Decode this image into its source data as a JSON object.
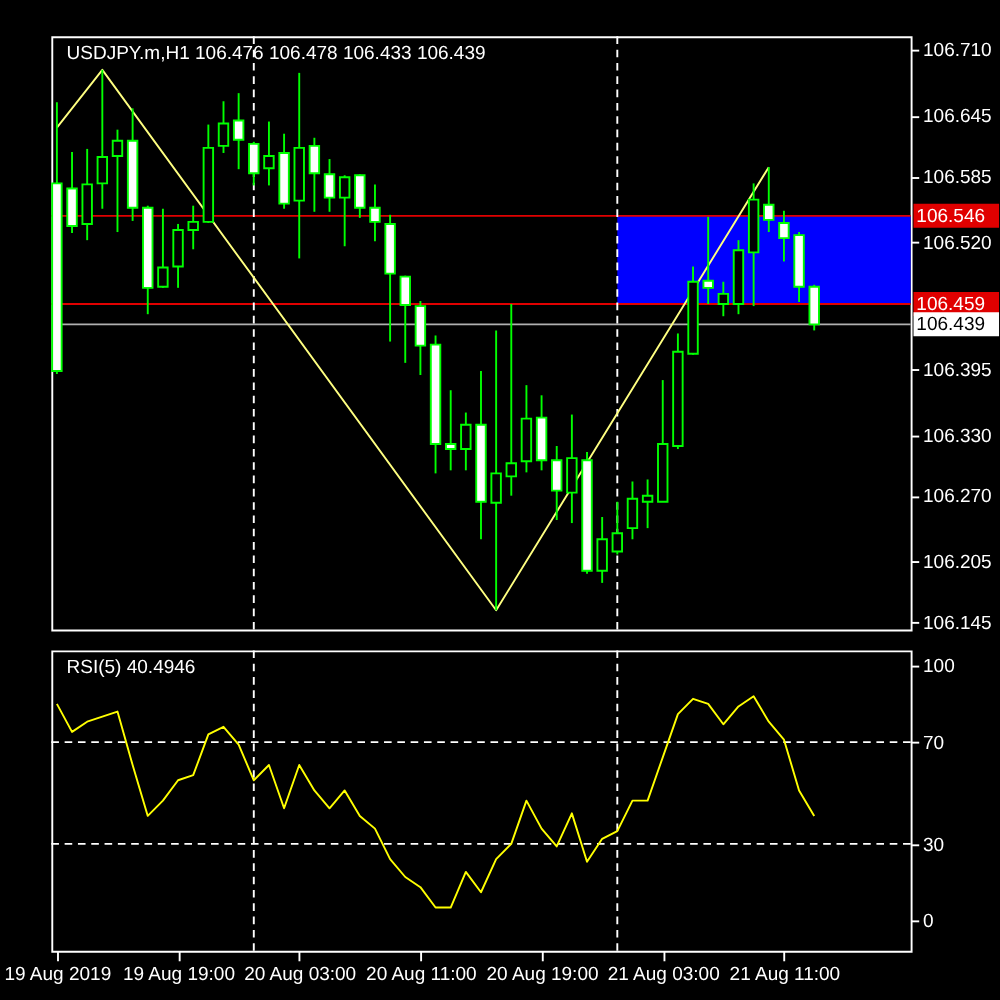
{
  "chart_data": [
    {
      "type": "candlestick",
      "title": "USDJPY.m,H1  106.476 106.478 106.433 106.439",
      "x": [
        "2019-08-19T11:00",
        "2019-08-19T12:00",
        "2019-08-19T13:00",
        "2019-08-19T14:00",
        "2019-08-19T15:00",
        "2019-08-19T16:00",
        "2019-08-19T17:00",
        "2019-08-19T18:00",
        "2019-08-19T19:00",
        "2019-08-19T20:00",
        "2019-08-19T21:00",
        "2019-08-19T22:00",
        "2019-08-19T23:00",
        "2019-08-20T00:00",
        "2019-08-20T01:00",
        "2019-08-20T02:00",
        "2019-08-20T03:00",
        "2019-08-20T04:00",
        "2019-08-20T05:00",
        "2019-08-20T06:00",
        "2019-08-20T07:00",
        "2019-08-20T08:00",
        "2019-08-20T09:00",
        "2019-08-20T10:00",
        "2019-08-20T11:00",
        "2019-08-20T12:00",
        "2019-08-20T13:00",
        "2019-08-20T14:00",
        "2019-08-20T15:00",
        "2019-08-20T16:00",
        "2019-08-20T17:00",
        "2019-08-20T18:00",
        "2019-08-20T19:00",
        "2019-08-20T20:00",
        "2019-08-20T21:00",
        "2019-08-20T22:00",
        "2019-08-20T23:00",
        "2019-08-21T00:00",
        "2019-08-21T01:00",
        "2019-08-21T02:00",
        "2019-08-21T03:00",
        "2019-08-21T04:00",
        "2019-08-21T05:00",
        "2019-08-21T06:00",
        "2019-08-21T07:00",
        "2019-08-21T08:00",
        "2019-08-21T09:00",
        "2019-08-21T10:00",
        "2019-08-21T11:00",
        "2019-08-21T12:00",
        "2019-08-21T13:00"
      ],
      "ohlc": [
        [
          106.578,
          106.658,
          106.39,
          106.393
        ],
        [
          106.573,
          106.609,
          106.529,
          106.536
        ],
        [
          106.538,
          106.612,
          106.522,
          106.577
        ],
        [
          106.578,
          106.69,
          106.553,
          106.604
        ],
        [
          106.605,
          106.631,
          106.53,
          106.62
        ],
        [
          106.62,
          106.652,
          106.541,
          106.554
        ],
        [
          106.554,
          106.556,
          106.449,
          106.475
        ],
        [
          106.476,
          106.553,
          106.475,
          106.495
        ],
        [
          106.496,
          106.538,
          106.475,
          106.532
        ],
        [
          106.532,
          106.556,
          106.513,
          106.54
        ],
        [
          106.54,
          106.636,
          106.539,
          106.613
        ],
        [
          106.615,
          106.659,
          106.608,
          106.637
        ],
        [
          106.64,
          106.667,
          106.592,
          106.621
        ],
        [
          106.617,
          106.619,
          106.576,
          106.588
        ],
        [
          106.593,
          106.639,
          106.576,
          106.605
        ],
        [
          106.608,
          106.627,
          106.553,
          106.558
        ],
        [
          106.561,
          106.687,
          106.504,
          106.613
        ],
        [
          106.615,
          106.623,
          106.55,
          106.588
        ],
        [
          106.587,
          106.602,
          106.55,
          106.564
        ],
        [
          106.564,
          106.586,
          106.516,
          106.584
        ],
        [
          106.586,
          106.587,
          106.544,
          106.554
        ],
        [
          106.554,
          106.577,
          106.521,
          106.54
        ],
        [
          106.538,
          106.547,
          106.422,
          106.489
        ],
        [
          106.486,
          106.487,
          106.401,
          106.458
        ],
        [
          106.457,
          106.462,
          106.389,
          106.418
        ],
        [
          106.419,
          106.428,
          106.292,
          106.321
        ],
        [
          106.321,
          106.374,
          106.295,
          106.316
        ],
        [
          106.316,
          106.352,
          106.295,
          106.34
        ],
        [
          106.34,
          106.393,
          106.227,
          106.264
        ],
        [
          106.263,
          106.433,
          106.157,
          106.292
        ],
        [
          106.289,
          106.459,
          106.27,
          106.302
        ],
        [
          106.304,
          106.379,
          106.293,
          106.346
        ],
        [
          106.347,
          106.369,
          106.295,
          106.305
        ],
        [
          106.305,
          106.319,
          106.246,
          106.275
        ],
        [
          106.273,
          106.35,
          106.243,
          106.307
        ],
        [
          106.305,
          106.313,
          106.193,
          106.196
        ],
        [
          106.196,
          106.249,
          106.184,
          106.227
        ],
        [
          106.215,
          106.264,
          106.212,
          106.233
        ],
        [
          106.238,
          106.284,
          106.227,
          106.267
        ],
        [
          106.264,
          106.286,
          106.238,
          106.27
        ],
        [
          106.264,
          106.384,
          106.264,
          106.321
        ],
        [
          106.319,
          106.43,
          106.316,
          106.412
        ],
        [
          106.41,
          106.496,
          106.409,
          106.481
        ],
        [
          106.482,
          106.545,
          106.459,
          106.475
        ],
        [
          106.459,
          106.481,
          106.447,
          106.469
        ],
        [
          106.459,
          106.522,
          106.449,
          106.512
        ],
        [
          106.51,
          106.578,
          106.457,
          106.562
        ],
        [
          106.557,
          106.594,
          106.53,
          106.542
        ],
        [
          106.539,
          106.551,
          106.501,
          106.524
        ],
        [
          106.527,
          106.53,
          106.461,
          106.476
        ],
        [
          106.476,
          106.478,
          106.433,
          106.439
        ]
      ],
      "series": [
        {
          "type": "line",
          "color": "#ffff80",
          "x": [
            "2019-08-19T11:00",
            "2019-08-19T14:00",
            "2019-08-20T16:00",
            "2019-08-21T10:00"
          ],
          "values": [
            106.633,
            106.69,
            106.157,
            106.594
          ]
        }
      ],
      "xlim": [
        "2019-08-19T10:38",
        "2019-08-21T19:22"
      ],
      "ylim": [
        106.138,
        106.723
      ],
      "yticks": [
        {
          "value": 106.71,
          "label": "106.710"
        },
        {
          "value": 106.645,
          "label": "106.645"
        },
        {
          "value": 106.585,
          "label": "106.585"
        },
        {
          "value": 106.52,
          "label": "106.520"
        },
        {
          "value": 106.395,
          "label": "106.395"
        },
        {
          "value": 106.33,
          "label": "106.330"
        },
        {
          "value": 106.27,
          "label": "106.270"
        },
        {
          "value": 106.205,
          "label": "106.205"
        },
        {
          "value": 106.145,
          "label": "106.145"
        }
      ],
      "ref_lines": [
        {
          "axis": "y",
          "value": 106.546,
          "label": "106.546",
          "color": "#e00000"
        },
        {
          "axis": "y",
          "value": 106.459,
          "label": "106.459",
          "color": "#e00000"
        },
        {
          "axis": "y",
          "value": 106.439,
          "label": "106.439",
          "color": "#b0b0b0"
        },
        {
          "axis": "x",
          "value": "2019-08-20T00:00",
          "label": null,
          "color": "#ffffff",
          "line_style": "dashed"
        },
        {
          "axis": "x",
          "value": "2019-08-21T00:00",
          "label": null,
          "color": "#ffffff",
          "line_style": "dashed"
        }
      ],
      "bands": [
        {
          "axis": "y",
          "from": 106.459,
          "to": 106.546,
          "label": null,
          "color": "#0000ff"
        }
      ],
      "tick_labels": "y",
      "grid": false
    },
    {
      "type": "line",
      "title": "RSI(5) 40.4946",
      "x": [
        "2019-08-19T11:00",
        "2019-08-19T12:00",
        "2019-08-19T13:00",
        "2019-08-19T14:00",
        "2019-08-19T15:00",
        "2019-08-19T16:00",
        "2019-08-19T17:00",
        "2019-08-19T18:00",
        "2019-08-19T19:00",
        "2019-08-19T20:00",
        "2019-08-19T21:00",
        "2019-08-19T22:00",
        "2019-08-19T23:00",
        "2019-08-20T00:00",
        "2019-08-20T01:00",
        "2019-08-20T02:00",
        "2019-08-20T03:00",
        "2019-08-20T04:00",
        "2019-08-20T05:00",
        "2019-08-20T06:00",
        "2019-08-20T07:00",
        "2019-08-20T08:00",
        "2019-08-20T09:00",
        "2019-08-20T10:00",
        "2019-08-20T11:00",
        "2019-08-20T12:00",
        "2019-08-20T13:00",
        "2019-08-20T14:00",
        "2019-08-20T15:00",
        "2019-08-20T16:00",
        "2019-08-20T17:00",
        "2019-08-20T18:00",
        "2019-08-20T19:00",
        "2019-08-20T20:00",
        "2019-08-20T21:00",
        "2019-08-20T22:00",
        "2019-08-20T23:00",
        "2019-08-21T00:00",
        "2019-08-21T01:00",
        "2019-08-21T02:00",
        "2019-08-21T03:00",
        "2019-08-21T04:00",
        "2019-08-21T05:00",
        "2019-08-21T06:00",
        "2019-08-21T07:00",
        "2019-08-21T08:00",
        "2019-08-21T09:00",
        "2019-08-21T10:00",
        "2019-08-21T11:00",
        "2019-08-21T12:00",
        "2019-08-21T13:00"
      ],
      "series": [
        {
          "color": "#ffff00",
          "values": [
            85,
            74,
            78,
            80,
            82,
            61,
            41,
            47,
            55,
            57,
            73,
            76,
            69,
            55,
            61,
            44,
            61,
            51,
            44,
            51,
            41,
            36,
            24,
            17,
            13,
            5,
            5,
            19,
            11,
            24,
            30,
            47,
            36,
            29,
            42,
            23,
            32,
            35,
            47,
            47,
            64,
            81,
            87,
            85,
            77,
            84,
            88,
            78,
            71,
            51,
            41
          ]
        }
      ],
      "xlim": [
        "2019-08-19T10:38",
        "2019-08-21T19:22"
      ],
      "ylim": [
        -12,
        106
      ],
      "yticks": [
        0,
        30,
        70,
        100
      ],
      "xticks": [
        {
          "value": "2019-08-19T11:00",
          "label": "19 Aug 2019"
        },
        {
          "value": "2019-08-19T19:00",
          "label": "19 Aug 19:00"
        },
        {
          "value": "2019-08-20T03:00",
          "label": "20 Aug 03:00"
        },
        {
          "value": "2019-08-20T11:00",
          "label": "20 Aug 11:00"
        },
        {
          "value": "2019-08-20T19:00",
          "label": "20 Aug 19:00"
        },
        {
          "value": "2019-08-21T03:00",
          "label": "21 Aug 03:00"
        },
        {
          "value": "2019-08-21T11:00",
          "label": "21 Aug 11:00"
        }
      ],
      "ref_lines": [
        {
          "axis": "y",
          "value": 70,
          "label": null,
          "color": "#ffffff",
          "line_style": "dashed"
        },
        {
          "axis": "y",
          "value": 30,
          "label": null,
          "color": "#ffffff",
          "line_style": "dashed"
        },
        {
          "axis": "x",
          "value": "2019-08-20T00:00",
          "label": null,
          "color": "#ffffff",
          "line_style": "dashed"
        },
        {
          "axis": "x",
          "value": "2019-08-21T00:00",
          "label": null,
          "color": "#ffffff",
          "line_style": "dashed"
        }
      ],
      "grid": false
    }
  ]
}
